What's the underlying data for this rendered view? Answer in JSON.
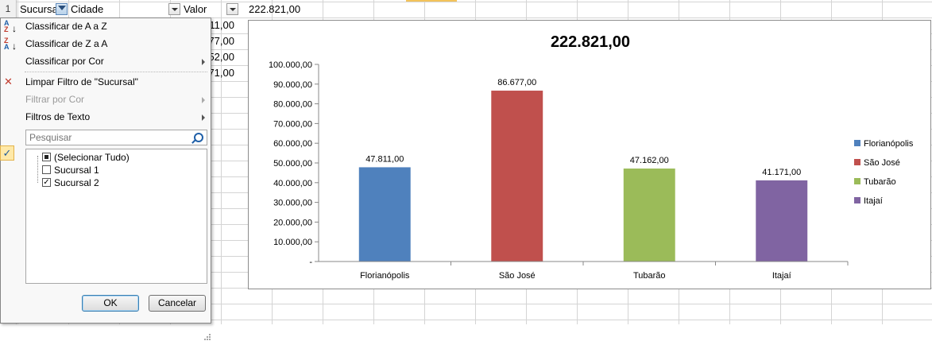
{
  "sheet": {
    "row_numbers": [
      "1"
    ],
    "headers": [
      {
        "label": "Sucursal"
      },
      {
        "label": "Cidade"
      },
      {
        "label": "Valor"
      }
    ],
    "total_cell": "222.821,00",
    "value_cells": [
      "11,00",
      "77,00",
      "52,00",
      "71,00"
    ]
  },
  "filter_menu": {
    "sort_az": "Classificar de A a Z",
    "sort_za": "Classificar de Z a A",
    "sort_color": "Classificar por Cor",
    "clear_filter": "Limpar Filtro de \"Sucursal\"",
    "filter_color": "Filtrar por Cor",
    "text_filters": "Filtros de Texto",
    "search_placeholder": "Pesquisar",
    "items": [
      {
        "label": "(Selecionar Tudo)",
        "state": "partial"
      },
      {
        "label": "Sucursal 1",
        "state": "unchecked"
      },
      {
        "label": "Sucursal 2",
        "state": "checked"
      }
    ],
    "ok_label": "OK",
    "cancel_label": "Cancelar"
  },
  "chart_data": {
    "type": "bar",
    "title": "222.821,00",
    "categories": [
      "Florianópolis",
      "São José",
      "Tubarão",
      "Itajaí"
    ],
    "values": [
      47811,
      86677,
      47162,
      41171
    ],
    "value_labels": [
      "47.811,00",
      "86.677,00",
      "47.162,00",
      "41.171,00"
    ],
    "colors": [
      "#4f81bd",
      "#c0504d",
      "#9bbb59",
      "#8064a2"
    ],
    "ylim": [
      0,
      100000
    ],
    "y_ticks": [
      "-",
      "10.000,00",
      "20.000,00",
      "30.000,00",
      "40.000,00",
      "50.000,00",
      "60.000,00",
      "70.000,00",
      "80.000,00",
      "90.000,00",
      "100.000,00"
    ],
    "legend": [
      "Florianópolis",
      "São José",
      "Tubarão",
      "Itajaí"
    ],
    "legend_position": "right",
    "grid": false,
    "xlabel": "",
    "ylabel": ""
  }
}
